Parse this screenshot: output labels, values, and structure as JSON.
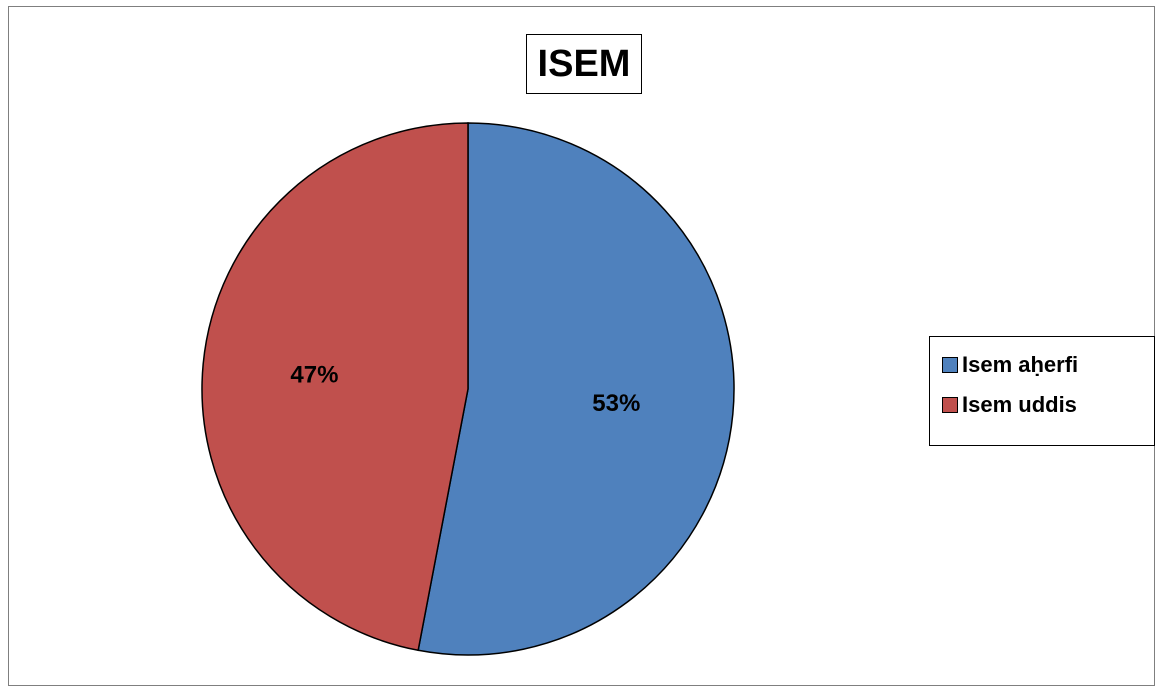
{
  "chart_data": {
    "type": "pie",
    "title": "ISEM",
    "categories": [
      "Isem aḥerfi",
      "Isem uddis"
    ],
    "values": [
      53,
      47
    ],
    "value_labels": [
      "53%",
      "47%"
    ],
    "colors": [
      "#4F81BD",
      "#C0504D"
    ],
    "legend_position": "right"
  }
}
